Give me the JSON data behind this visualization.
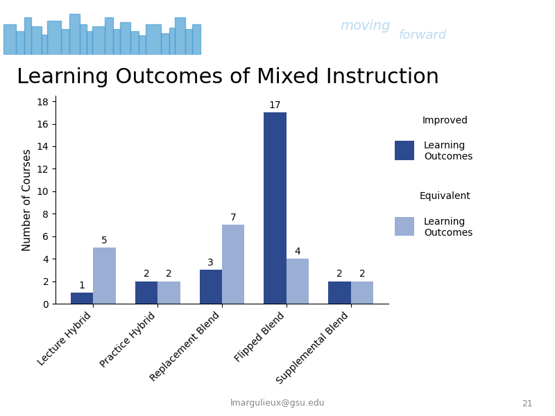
{
  "title": "Learning Outcomes of Mixed Instruction",
  "categories": [
    "Lecture Hybrid",
    "Practice Hybrid",
    "Replacement Blend",
    "Flipped Blend",
    "Supplemental Blend"
  ],
  "improved_values": [
    1,
    2,
    3,
    17,
    2
  ],
  "equivalent_values": [
    5,
    2,
    7,
    4,
    2
  ],
  "improved_color": "#2E4A8E",
  "equivalent_color": "#9BAFD4",
  "ylabel": "Number of Courses",
  "yticks": [
    0,
    2,
    4,
    6,
    8,
    10,
    12,
    14,
    16,
    18
  ],
  "ylim": [
    0,
    18.5
  ],
  "footer_text": "lmargulieux@gsu.edu",
  "slide_number": "21",
  "background_color": "#FFFFFF",
  "header_bg_color": "#1565C0",
  "header_city_color": "#4A9FD4",
  "bar_width": 0.35,
  "title_fontsize": 22,
  "axis_label_fontsize": 11,
  "tick_fontsize": 10,
  "annotation_fontsize": 10,
  "legend_fontsize": 10
}
